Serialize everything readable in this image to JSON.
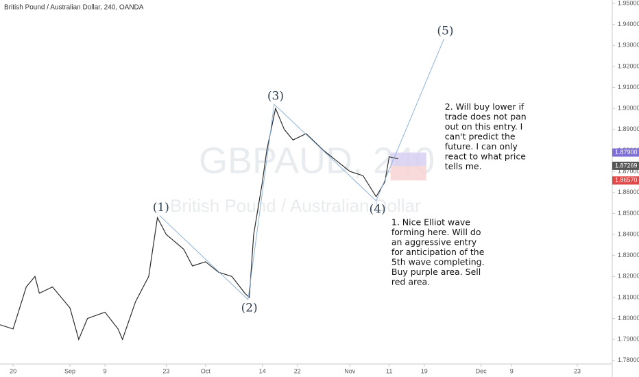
{
  "chart_data": {
    "type": "line",
    "title": "British Pound / Australian Dollar, 240, OANDA",
    "watermark_symbol": "GBPAUD, 240",
    "watermark_name": "British Pound / Australian Dollar",
    "color": "#2b2b2b",
    "x": [
      0,
      3,
      6,
      8,
      9,
      12,
      16,
      18,
      20,
      24,
      27,
      28,
      31,
      34,
      36,
      38,
      42,
      44,
      47,
      50,
      53,
      56,
      57,
      58,
      60,
      61,
      63,
      65,
      67,
      70,
      74,
      77,
      80,
      83,
      86,
      88,
      89,
      91
    ],
    "values": [
      1.797,
      1.795,
      1.815,
      1.82,
      1.812,
      1.815,
      1.805,
      1.79,
      1.8,
      1.803,
      1.795,
      1.79,
      1.808,
      1.82,
      1.848,
      1.84,
      1.833,
      1.825,
      1.827,
      1.822,
      1.82,
      1.812,
      1.81,
      1.84,
      1.865,
      1.88,
      1.9,
      1.89,
      1.885,
      1.888,
      1.88,
      1.875,
      1.87,
      1.868,
      1.858,
      1.865,
      1.877,
      1.876
    ],
    "xlim": [
      0,
      140
    ],
    "ylim": [
      1.77832,
      1.95164
    ],
    "xticks": [
      {
        "value": 3,
        "label": "20"
      },
      {
        "value": 16,
        "label": "Sep"
      },
      {
        "value": 24,
        "label": "9"
      },
      {
        "value": 38,
        "label": "23"
      },
      {
        "value": 47,
        "label": "Oct"
      },
      {
        "value": 60,
        "label": "14"
      },
      {
        "value": 68,
        "label": "22"
      },
      {
        "value": 80,
        "label": "Nov"
      },
      {
        "value": 89,
        "label": "11"
      },
      {
        "value": 97,
        "label": "19"
      },
      {
        "value": 110,
        "label": "Dec"
      },
      {
        "value": 117,
        "label": "9"
      },
      {
        "value": 132,
        "label": "23"
      }
    ],
    "yticks": [
      {
        "value": 1.78,
        "label": "1.78000"
      },
      {
        "value": 1.79,
        "label": "1.79000"
      },
      {
        "value": 1.8,
        "label": "1.80000"
      },
      {
        "value": 1.81,
        "label": "1.81000"
      },
      {
        "value": 1.82,
        "label": "1.82000"
      },
      {
        "value": 1.83,
        "label": "1.83000"
      },
      {
        "value": 1.84,
        "label": "1.84000"
      },
      {
        "value": 1.85,
        "label": "1.85000"
      },
      {
        "value": 1.86,
        "label": "1.86000"
      },
      {
        "value": 1.87,
        "label": "1.87000"
      },
      {
        "value": 1.88,
        "label": "1.88000"
      },
      {
        "value": 1.89,
        "label": "1.89000"
      },
      {
        "value": 1.9,
        "label": "1.90000"
      },
      {
        "value": 1.91,
        "label": "1.91000"
      },
      {
        "value": 1.92,
        "label": "1.92000"
      },
      {
        "value": 1.93,
        "label": "1.93000"
      },
      {
        "value": 1.94,
        "label": "1.94000"
      },
      {
        "value": 1.95,
        "label": "1.95000"
      }
    ],
    "waves": [
      {
        "label": "(1)",
        "x": 36.5,
        "y": 1.849
      },
      {
        "label": "(2)",
        "x": 56.7,
        "y": 1.809
      },
      {
        "label": "(3)",
        "x": 62.7,
        "y": 1.902
      },
      {
        "label": "(4)",
        "x": 86,
        "y": 1.856
      },
      {
        "label": "(5)",
        "x": 101.5,
        "y": 1.933
      }
    ],
    "zones": [
      {
        "color": "#d7d0f2",
        "top": 1.879,
        "bottom": 1.87269,
        "x0": 89.3,
        "x1": 97.5
      },
      {
        "color": "#f8d3d3",
        "top": 1.87269,
        "bottom": 1.8657,
        "x0": 89.3,
        "x1": 97.5
      }
    ],
    "price_tags": [
      {
        "value": 1.879,
        "label": "1.87900",
        "color": "#7e6fd6"
      },
      {
        "value": 1.87269,
        "label": "1.87269",
        "color": "#555555"
      },
      {
        "value": 1.8657,
        "label": "1.86570",
        "color": "#e04848"
      }
    ],
    "annotations": [
      {
        "x": 101.7,
        "y": 1.9005,
        "lines": [
          "2. Will buy lower if",
          "trade does not pan",
          "out on this entry. I",
          "can't predict the",
          "future. I can only",
          "react to what price",
          "tells me."
        ]
      },
      {
        "x": 89.5,
        "y": 1.8455,
        "lines": [
          "1. Nice Elliot wave",
          "forming here. Will do",
          "an aggressive entry",
          "for anticipation of the",
          "5th wave completing.",
          "Buy purple area. Sell",
          "red area."
        ]
      }
    ]
  }
}
